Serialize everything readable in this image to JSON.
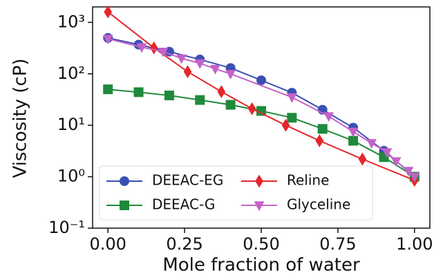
{
  "chart_data": {
    "type": "line",
    "xlabel": "Mole fraction of water",
    "ylabel": "Viscosity (cP)",
    "xlim": [
      -0.05,
      1.05
    ],
    "ylim": [
      0.1,
      2000
    ],
    "yscale": "log",
    "xticks": [
      {
        "value": 0,
        "label": "0.00"
      },
      0.25,
      {
        "value": 0.5,
        "label": "0.50"
      },
      0.75,
      {
        "value": 1,
        "label": "1.00"
      }
    ],
    "yticks": [
      {
        "value": 0.1,
        "label": "10⁻¹"
      },
      {
        "value": 1,
        "label": "10⁰"
      },
      {
        "value": 10,
        "label": "10¹"
      },
      {
        "value": 100,
        "label": "10²"
      },
      {
        "value": 1000,
        "label": "10³"
      }
    ],
    "legend": "lower left",
    "series": [
      {
        "name": "DEEAC-EG",
        "color": "#3b4fb3",
        "marker": "circle",
        "x": [
          0,
          0.1,
          0.2,
          0.3,
          0.4,
          0.5,
          0.6,
          0.7,
          0.8,
          0.9,
          1.0
        ],
        "values": [
          500,
          370,
          270,
          190,
          130,
          75,
          43,
          20,
          9,
          3.2,
          1.0
        ]
      },
      {
        "name": "DEEAC-G",
        "color": "#1f8a3b",
        "marker": "square",
        "x": [
          0,
          0.1,
          0.2,
          0.3,
          0.4,
          0.5,
          0.6,
          0.7,
          0.8,
          0.9,
          1.0
        ],
        "values": [
          50,
          44,
          38,
          31,
          25,
          19,
          14,
          8.5,
          5,
          2.4,
          1.0
        ]
      },
      {
        "name": "Reline",
        "color": "#e5262b",
        "marker": "diamond",
        "x": [
          0,
          0.15,
          0.26,
          0.37,
          0.47,
          0.58,
          0.69,
          0.83,
          1.0
        ],
        "values": [
          1600,
          320,
          110,
          45,
          21,
          10,
          5,
          2.2,
          0.85
        ]
      },
      {
        "name": "Glyceline",
        "color": "#c462c9",
        "marker": "triangle-down",
        "x": [
          0,
          0.11,
          0.18,
          0.24,
          0.3,
          0.35,
          0.4,
          0.6,
          0.72,
          0.8,
          0.86,
          0.91,
          0.94,
          0.98,
          1.0
        ],
        "values": [
          480,
          330,
          270,
          200,
          160,
          125,
          100,
          35,
          15,
          7.5,
          4.5,
          3.0,
          2.0,
          1.3,
          1.0
        ]
      }
    ]
  }
}
